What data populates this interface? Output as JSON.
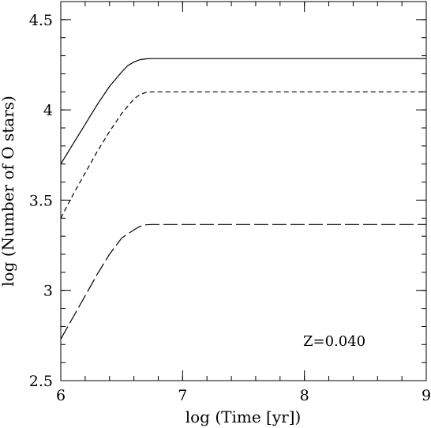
{
  "chart_data": {
    "type": "line",
    "title": "",
    "xlabel": "log (Time [yr])",
    "ylabel": "log (Number of O stars)",
    "xlim": [
      6,
      9
    ],
    "ylim": [
      2.5,
      4.6
    ],
    "x_ticks": [
      6,
      7,
      8,
      9
    ],
    "x_tick_labels": [
      "6",
      "7",
      "8",
      "9"
    ],
    "y_ticks": [
      2.5,
      3,
      3.5,
      4,
      4.5
    ],
    "y_tick_labels": [
      "2.5",
      "3",
      "3.5",
      "4",
      "4.5"
    ],
    "x_minor_step": 0.2,
    "y_minor_step": 0.1,
    "grid": false,
    "legend": "none",
    "annotation": "Z=0.040",
    "series": [
      {
        "style": "solid",
        "x": [
          6.0,
          6.1,
          6.2,
          6.3,
          6.4,
          6.5,
          6.55,
          6.6,
          6.65,
          6.7,
          6.75,
          7.0,
          8.0,
          9.0
        ],
        "y": [
          3.7,
          3.81,
          3.92,
          4.03,
          4.13,
          4.21,
          4.245,
          4.265,
          4.278,
          4.283,
          4.284,
          4.284,
          4.284,
          4.284
        ]
      },
      {
        "style": "dashed",
        "x": [
          6.0,
          6.1,
          6.2,
          6.3,
          6.4,
          6.5,
          6.6,
          6.65,
          6.7,
          6.75,
          7.0,
          8.0,
          9.0
        ],
        "y": [
          3.4,
          3.53,
          3.65,
          3.77,
          3.88,
          3.98,
          4.06,
          4.085,
          4.097,
          4.1,
          4.1,
          4.1,
          4.1
        ]
      },
      {
        "style": "long-dashed",
        "x": [
          6.0,
          6.1,
          6.2,
          6.3,
          6.4,
          6.5,
          6.6,
          6.65,
          6.7,
          6.75,
          7.0,
          8.0,
          9.0
        ],
        "y": [
          2.73,
          2.85,
          2.97,
          3.09,
          3.2,
          3.29,
          3.335,
          3.355,
          3.363,
          3.365,
          3.365,
          3.365,
          3.365
        ]
      }
    ]
  }
}
